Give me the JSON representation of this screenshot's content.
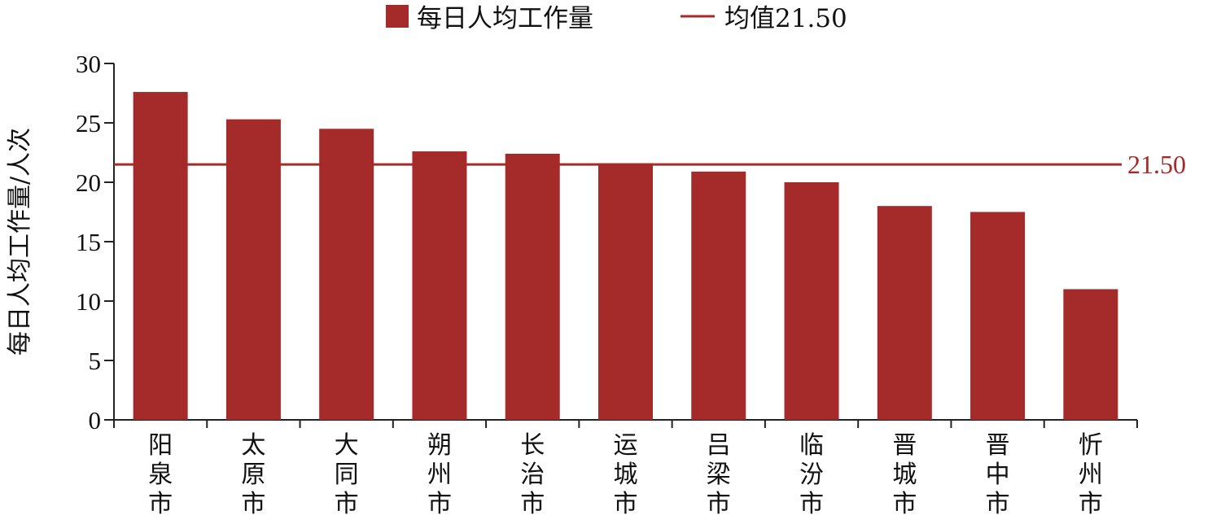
{
  "colors": {
    "bar": "#a52a2a",
    "mean_line": "#a52a2a",
    "axis": "#222222"
  },
  "legend": {
    "bar_label": "每日人均工作量",
    "line_label": "均值21.50"
  },
  "chart_data": {
    "type": "bar",
    "categories": [
      "阳泉市",
      "太原市",
      "大同市",
      "朔州市",
      "长治市",
      "运城市",
      "吕梁市",
      "临汾市",
      "晋城市",
      "晋中市",
      "忻州市"
    ],
    "series": [
      {
        "name": "每日人均工作量",
        "values": [
          27.6,
          25.3,
          24.5,
          22.6,
          22.4,
          21.6,
          20.9,
          20.0,
          18.0,
          17.5,
          11.0
        ]
      }
    ],
    "mean": {
      "name": "均值21.50",
      "value": 21.5,
      "label": "21.50"
    },
    "ylabel": "每日人均工作量/人次",
    "xlabel": "",
    "ylim": [
      0,
      30
    ],
    "yticks": [
      0,
      5,
      10,
      15,
      20,
      25,
      30
    ],
    "grid": false,
    "legend_position": "top"
  }
}
